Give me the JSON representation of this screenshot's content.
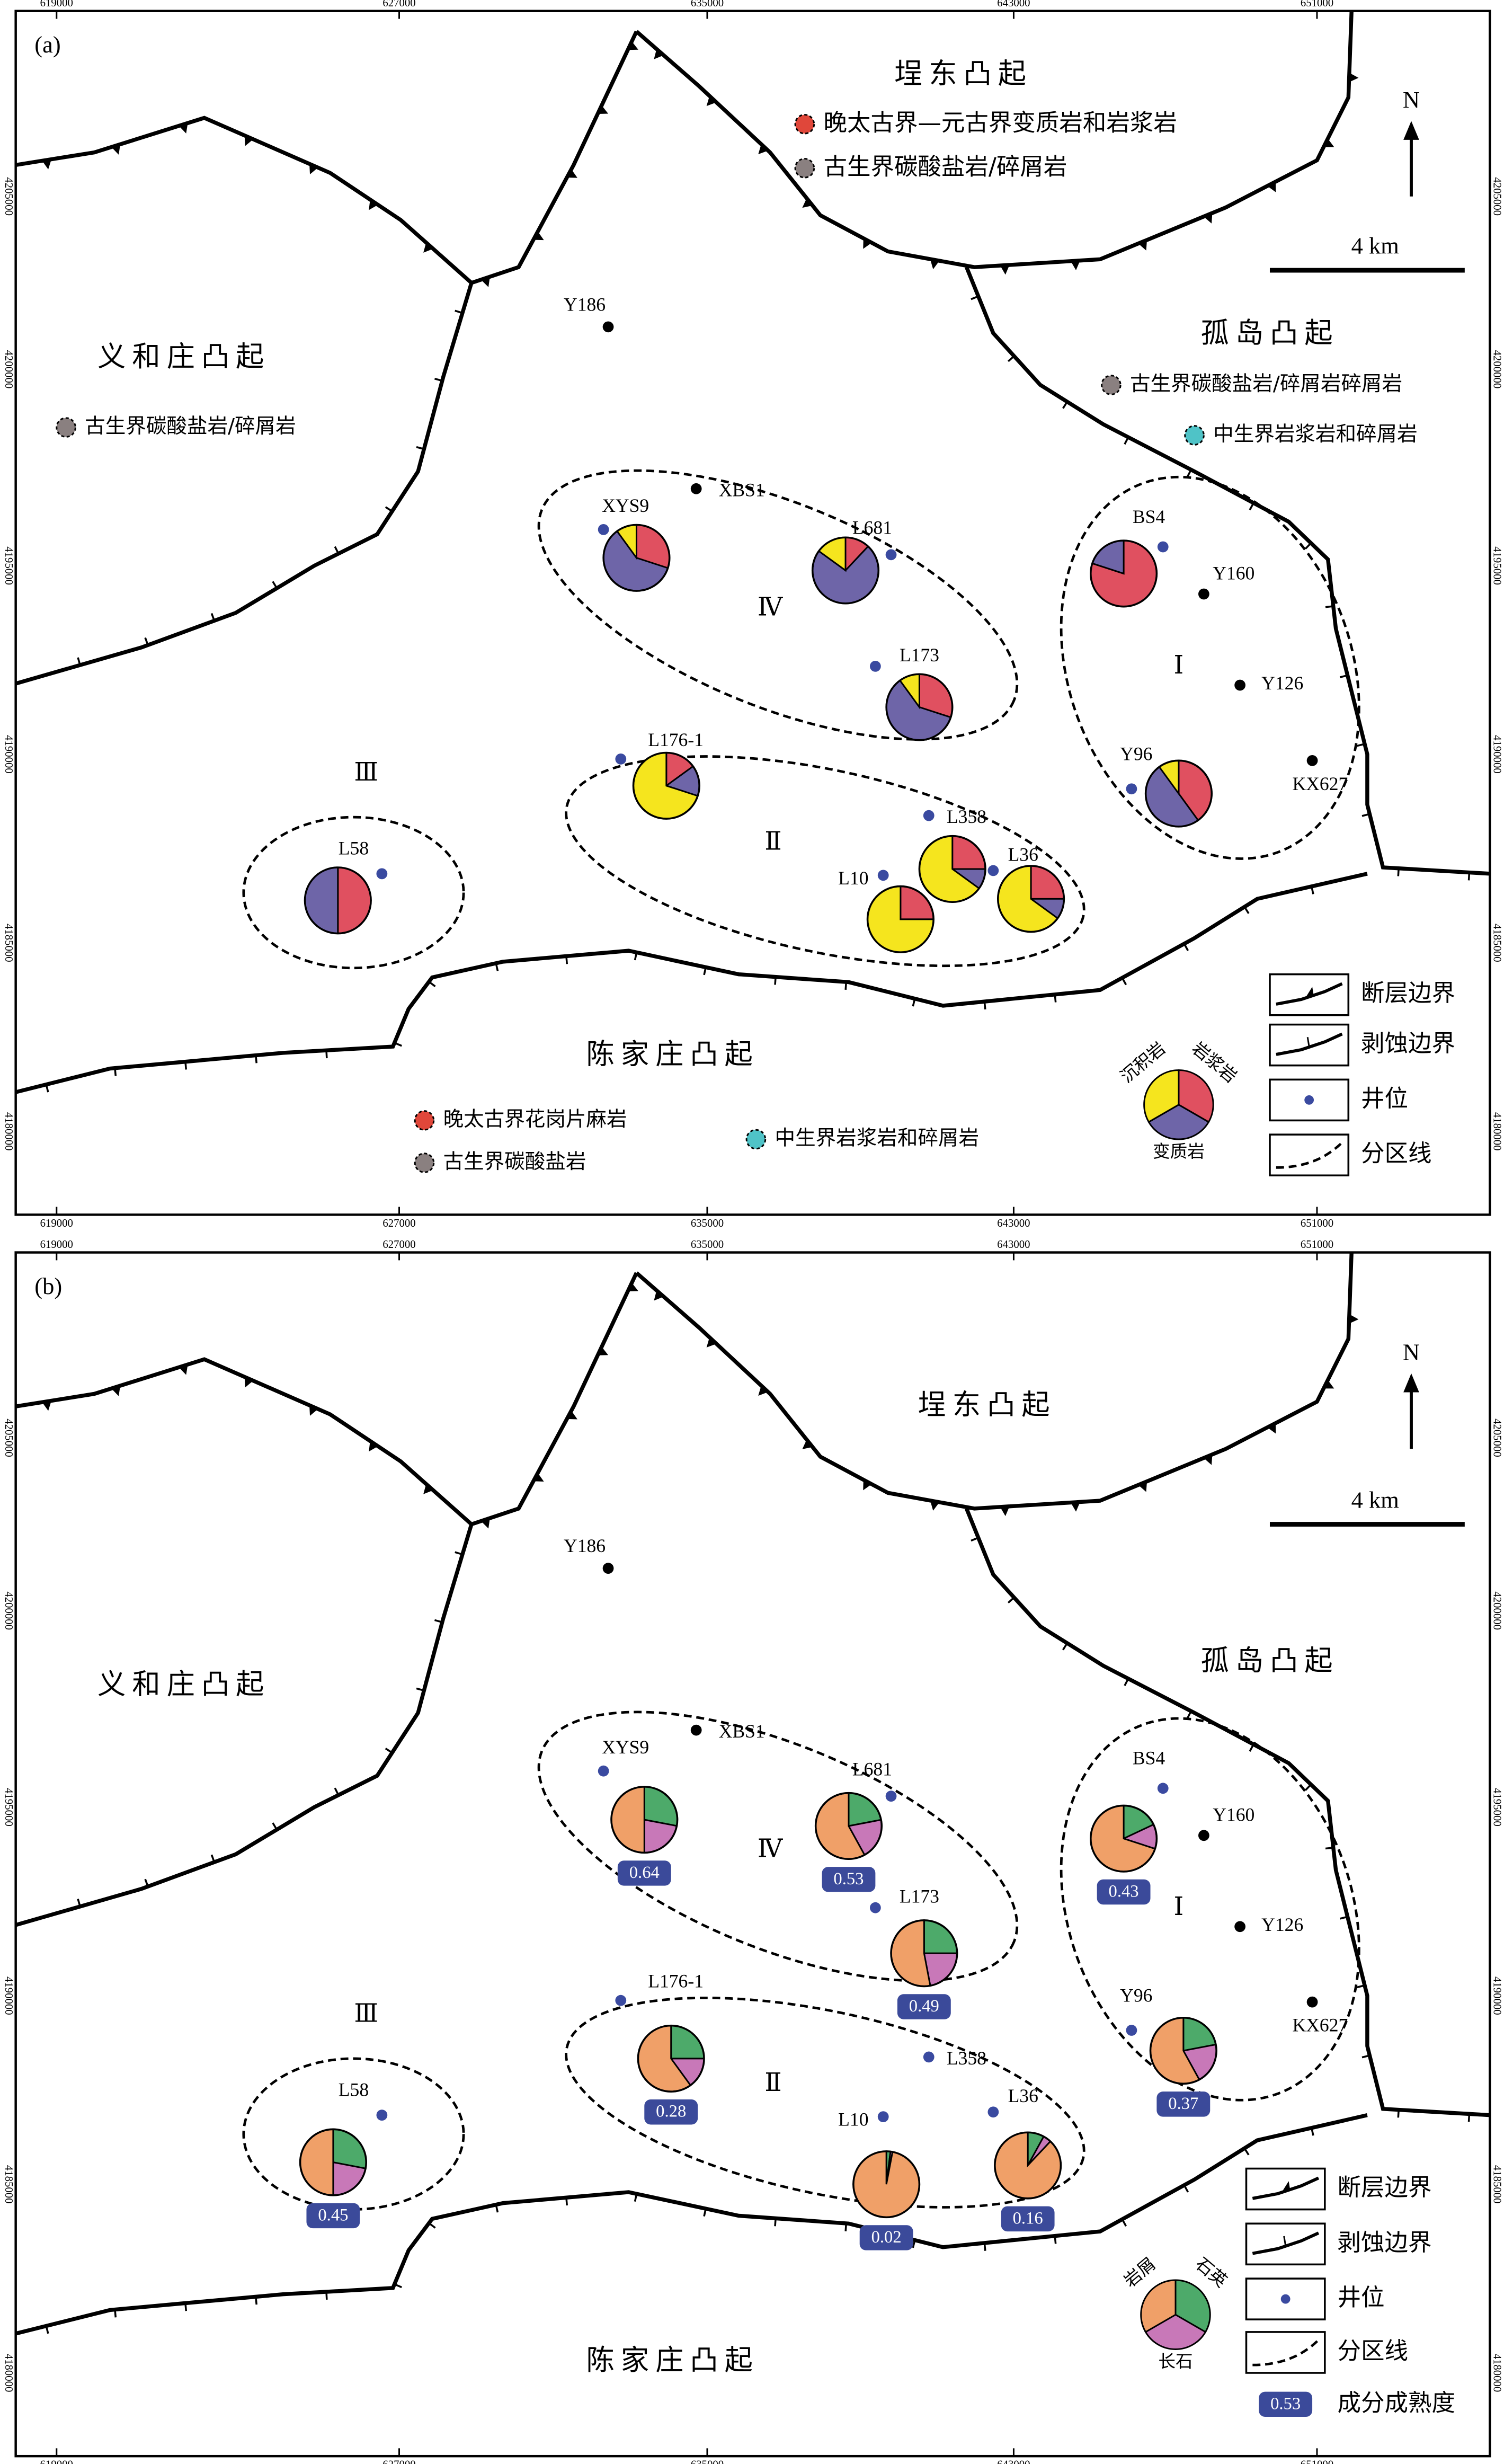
{
  "panels": [
    {
      "label": "(a)",
      "x_ticks": [
        "619000",
        "627000",
        "635000",
        "643000",
        "651000"
      ],
      "y_ticks": [
        "4205000",
        "4200000",
        "4195000",
        "4190000",
        "4185000",
        "4180000"
      ],
      "uplifts": [
        "埕东凸起",
        "义和庄凸起",
        "孤岛凸起",
        "陈家庄凸起"
      ],
      "sources": [
        {
          "text": "晚太古界—元古界变质岩和岩浆岩",
          "color": "#e0473a"
        },
        {
          "text": "古生界碳酸盐岩/碎屑岩",
          "color": "#8a8080"
        },
        {
          "text": "古生界碳酸盐岩/碎屑岩",
          "color": "#8a8080"
        },
        {
          "text": "古生界碳酸盐岩/碎屑岩碎屑岩",
          "color": "#8a8080"
        },
        {
          "text": "中生界岩浆岩和碎屑岩",
          "color": "#4fc3c7"
        },
        {
          "text": "晚太古界花岗片麻岩",
          "color": "#e0473a"
        },
        {
          "text": "古生界碳酸盐岩",
          "color": "#8a8080"
        },
        {
          "text": "中生界岩浆岩和碎屑岩",
          "color": "#4fc3c7"
        }
      ],
      "wells": [
        "Y186",
        "XBS1",
        "XYS9",
        "L681",
        "L173",
        "BS4",
        "Y160",
        "Y126",
        "KX627",
        "Y96",
        "L176-1",
        "L358",
        "L10",
        "L36",
        "L58"
      ],
      "zones": [
        "Ⅰ",
        "Ⅱ",
        "Ⅲ",
        "Ⅳ"
      ],
      "pie_series": [
        {
          "name": "岩浆岩",
          "color": "#e05060"
        },
        {
          "name": "变质岩",
          "color": "#6e65a8"
        },
        {
          "name": "沉积岩",
          "color": "#f5e51e"
        }
      ],
      "pies": [
        [
          30,
          60,
          10
        ],
        [
          12,
          73,
          15
        ],
        [
          30,
          60,
          10
        ],
        [
          80,
          20,
          0
        ],
        [
          40,
          50,
          10
        ],
        [
          15,
          15,
          70
        ],
        [
          25,
          10,
          65
        ],
        [
          25,
          0,
          75
        ],
        [
          25,
          10,
          65
        ],
        [
          50,
          50,
          0
        ]
      ],
      "legend": [
        "断层边界",
        "剥蚀边界",
        "井位",
        "分区线"
      ],
      "north": "N",
      "scale": "4 km"
    },
    {
      "label": "(b)",
      "x_ticks": [
        "619000",
        "627000",
        "635000",
        "643000",
        "651000"
      ],
      "y_ticks": [
        "4205000",
        "4200000",
        "4195000",
        "4190000",
        "4185000",
        "4180000"
      ],
      "uplifts": [
        "埕东凸起",
        "义和庄凸起",
        "孤岛凸起",
        "陈家庄凸起"
      ],
      "wells": [
        "Y186",
        "XBS1",
        "XYS9",
        "L681",
        "L173",
        "BS4",
        "Y160",
        "Y126",
        "KX627",
        "Y96",
        "L176-1",
        "L358",
        "L10",
        "L36",
        "L58"
      ],
      "zones": [
        "Ⅰ",
        "Ⅱ",
        "Ⅲ",
        "Ⅳ"
      ],
      "pie_series": [
        {
          "name": "石英",
          "color": "#4daa6a"
        },
        {
          "name": "长石",
          "color": "#c878b8"
        },
        {
          "name": "岩屑",
          "color": "#f0a068"
        }
      ],
      "pies": [
        [
          28,
          22,
          50
        ],
        [
          22,
          20,
          58
        ],
        [
          25,
          22,
          53
        ],
        [
          18,
          12,
          70
        ],
        [
          22,
          20,
          58
        ],
        [
          25,
          15,
          60
        ],
        [
          2,
          1,
          97
        ],
        [
          8,
          4,
          88
        ],
        [
          28,
          22,
          50
        ]
      ],
      "maturity": [
        0.64,
        0.53,
        0.49,
        0.43,
        0.37,
        0.28,
        0.02,
        0.16,
        0.45
      ],
      "legend": [
        "断层边界",
        "剥蚀边界",
        "井位",
        "分区线",
        "成分成熟度"
      ],
      "maturity_key": "0.53",
      "north": "N",
      "scale": "4 km"
    }
  ]
}
